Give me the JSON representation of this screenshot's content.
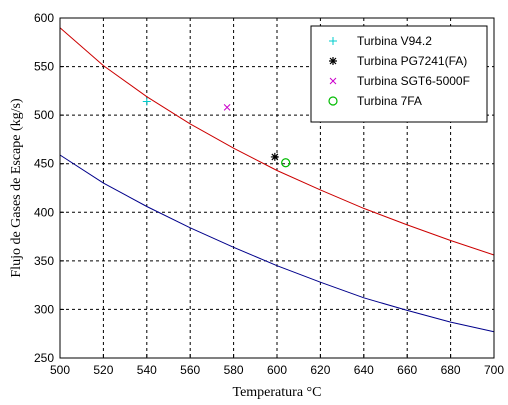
{
  "chart_data": {
    "type": "line",
    "title": "",
    "xlabel": "Temperatura °C",
    "ylabel": "Flujo de Gases de Escape (kg/s)",
    "xlim": [
      500,
      700
    ],
    "ylim": [
      250,
      600
    ],
    "xticks": [
      500,
      520,
      540,
      560,
      580,
      600,
      620,
      640,
      660,
      680,
      700
    ],
    "yticks": [
      250,
      300,
      350,
      400,
      450,
      500,
      550,
      600
    ],
    "grid": true,
    "legend_position": "top-right",
    "series": [
      {
        "kind": "curve",
        "color": "#cc0000",
        "x": [
          500,
          520,
          540,
          560,
          580,
          600,
          620,
          640,
          660,
          680,
          700
        ],
        "y": [
          590,
          551,
          519,
          491,
          466,
          443,
          423,
          404,
          387,
          371,
          356
        ]
      },
      {
        "kind": "curve",
        "color": "#00008b",
        "x": [
          500,
          520,
          540,
          560,
          580,
          600,
          620,
          640,
          660,
          680,
          700
        ],
        "y": [
          459,
          430,
          406,
          384,
          364,
          345,
          328,
          312,
          299,
          287,
          277
        ]
      },
      {
        "kind": "point",
        "name": "Turbina V94.2",
        "marker": "plus",
        "color": "#00cccc",
        "x": [
          540
        ],
        "y": [
          514
        ]
      },
      {
        "kind": "point",
        "name": "Turbina PG7241(FA)",
        "marker": "star",
        "color": "#000000",
        "x": [
          599
        ],
        "y": [
          457
        ]
      },
      {
        "kind": "point",
        "name": "Turbina SGT6-5000F",
        "marker": "x",
        "color": "#cc00cc",
        "x": [
          577
        ],
        "y": [
          508
        ]
      },
      {
        "kind": "point",
        "name": "Turbina 7FA",
        "marker": "circle",
        "color": "#00bb00",
        "x": [
          604
        ],
        "y": [
          451
        ]
      }
    ]
  }
}
